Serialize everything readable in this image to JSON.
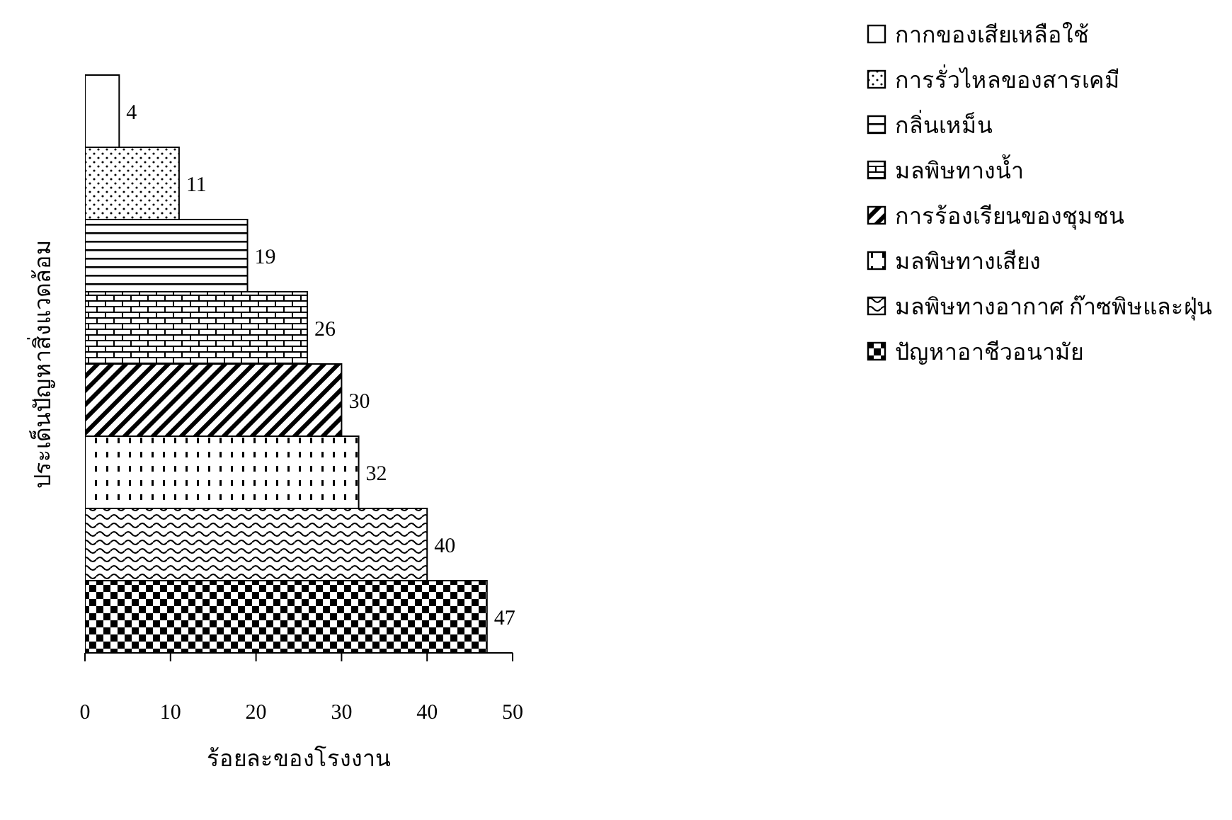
{
  "chart_data": {
    "type": "bar",
    "orientation": "horizontal",
    "stacked": true,
    "xlabel": "ร้อยละของโรงงาน",
    "ylabel": "ประเด็นปัญหาสิ่งแวดล้อม",
    "categories": [
      null,
      null,
      null,
      null,
      null,
      null,
      null,
      null
    ],
    "series": [
      {
        "name": "กากของเสียเหลือใช้",
        "color": "#000000",
        "values": [
          4,
          null,
          null,
          null,
          null,
          null,
          null,
          null
        ]
      },
      {
        "name": "การรั่วไหลของสารเคมี",
        "color": "#000000",
        "values": [
          null,
          11,
          null,
          null,
          null,
          null,
          null,
          null
        ]
      },
      {
        "name": "กลิ่นเหม็น",
        "color": "#000000",
        "values": [
          null,
          null,
          19,
          null,
          null,
          null,
          null,
          null
        ]
      },
      {
        "name": "มลพิษทางน้ำ",
        "color": "#000000",
        "values": [
          null,
          null,
          null,
          26,
          null,
          null,
          null,
          null
        ]
      },
      {
        "name": "การร้องเรียนของชุมชน",
        "color": "#000000",
        "values": [
          null,
          null,
          null,
          null,
          30,
          null,
          null,
          null
        ]
      },
      {
        "name": "มลพิษทางเสียง",
        "color": "#000000",
        "values": [
          null,
          null,
          null,
          null,
          null,
          32,
          null,
          null
        ]
      },
      {
        "name": "มลพิษทางอากาศ ก๊าซพิษและฝุ่น",
        "color": "#000000",
        "values": [
          null,
          null,
          null,
          null,
          null,
          null,
          40,
          null
        ]
      },
      {
        "name": "ปัญหาอาชีวอนามัย",
        "color": "#000000",
        "values": [
          null,
          null,
          null,
          null,
          null,
          null,
          null,
          47
        ]
      }
    ],
    "xlim": [
      0,
      50
    ],
    "xticks": [
      0,
      10,
      20,
      30,
      40,
      50
    ],
    "data_labels": true,
    "grid": false,
    "legend": "top right"
  }
}
